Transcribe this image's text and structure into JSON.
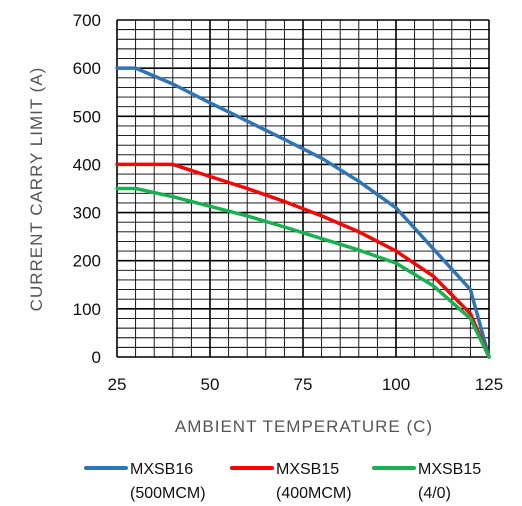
{
  "chart_data": {
    "type": "line",
    "xlabel": "AMBIENT TEMPERATURE (C)",
    "ylabel": "CURRENT CARRY LIMIT (A)",
    "xlim": [
      25,
      125
    ],
    "ylim": [
      0,
      700
    ],
    "xticks": [
      "25",
      "50",
      "75",
      "100",
      "125"
    ],
    "yticks": [
      "0",
      "100",
      "200",
      "300",
      "400",
      "500",
      "600",
      "700"
    ],
    "grid": true,
    "legend_position": "bottom",
    "series": [
      {
        "name": "MXSB16\n(500MCM)",
        "color": "#2e75b6",
        "x": [
          25,
          30,
          40,
          50,
          60,
          70,
          80,
          90,
          100,
          110,
          120,
          125
        ],
        "y": [
          600,
          600,
          567,
          528,
          490,
          452,
          413,
          365,
          310,
          225,
          140,
          0
        ]
      },
      {
        "name": "MXSB15\n(400MCM)",
        "color": "#ff0000",
        "x": [
          25,
          30,
          35,
          40,
          50,
          60,
          70,
          80,
          90,
          100,
          110,
          120,
          125
        ],
        "y": [
          400,
          400,
          400,
          400,
          375,
          350,
          323,
          293,
          260,
          220,
          168,
          90,
          0
        ]
      },
      {
        "name": "MXSB15\n(4/0)",
        "color": "#19b050",
        "x": [
          25,
          30,
          40,
          50,
          60,
          70,
          80,
          90,
          100,
          110,
          120,
          125
        ],
        "y": [
          350,
          350,
          333,
          313,
          293,
          270,
          246,
          222,
          195,
          148,
          80,
          0
        ]
      }
    ]
  }
}
